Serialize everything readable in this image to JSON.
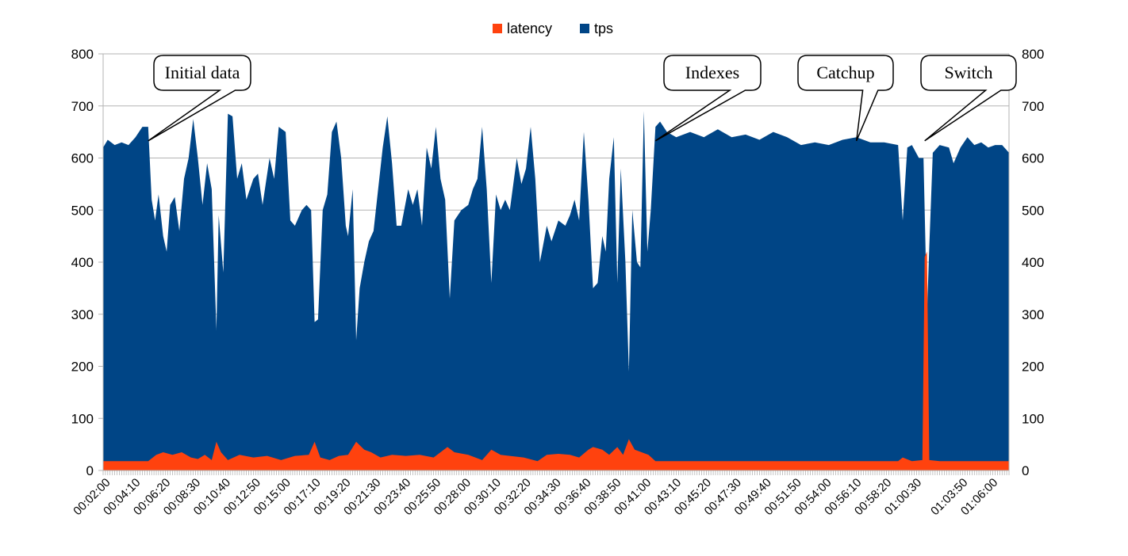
{
  "chart_data": {
    "type": "area",
    "title": "",
    "xlabel": "",
    "ylabel": "",
    "ylim": [
      0,
      800
    ],
    "y2lim": [
      0,
      800
    ],
    "yticks": [
      0,
      100,
      200,
      300,
      400,
      500,
      600,
      700,
      800
    ],
    "grid": true,
    "legend_position": "top",
    "x_range_seconds": [
      100,
      4020
    ],
    "x_tick_labels": [
      "00:02:00",
      "00:04:10",
      "00:06:20",
      "00:08:30",
      "00:10:40",
      "00:12:50",
      "00:15:00",
      "00:17:10",
      "00:19:20",
      "00:21:30",
      "00:23:40",
      "00:25:50",
      "00:28:00",
      "00:30:10",
      "00:32:20",
      "00:34:30",
      "00:36:40",
      "00:38:50",
      "00:41:00",
      "00:43:10",
      "00:45:20",
      "00:47:30",
      "00:49:40",
      "00:51:50",
      "00:54:00",
      "00:56:10",
      "00:58:20",
      "01:00:30",
      "01:03:50",
      "01:06:00"
    ],
    "series": [
      {
        "name": "tps",
        "color": "#004586",
        "points": [
          [
            "00:01:40",
            620
          ],
          [
            "00:02:00",
            635
          ],
          [
            "00:02:30",
            625
          ],
          [
            "00:03:00",
            630
          ],
          [
            "00:03:30",
            625
          ],
          [
            "00:04:00",
            640
          ],
          [
            "00:04:30",
            660
          ],
          [
            "00:04:55",
            660
          ],
          [
            "00:05:10",
            520
          ],
          [
            "00:05:25",
            480
          ],
          [
            "00:05:40",
            530
          ],
          [
            "00:06:00",
            450
          ],
          [
            "00:06:15",
            420
          ],
          [
            "00:06:30",
            510
          ],
          [
            "00:06:50",
            525
          ],
          [
            "00:07:10",
            460
          ],
          [
            "00:07:30",
            560
          ],
          [
            "00:07:50",
            600
          ],
          [
            "00:08:10",
            675
          ],
          [
            "00:08:30",
            600
          ],
          [
            "00:08:50",
            510
          ],
          [
            "00:09:10",
            590
          ],
          [
            "00:09:30",
            540
          ],
          [
            "00:09:50",
            270
          ],
          [
            "00:10:00",
            490
          ],
          [
            "00:10:20",
            380
          ],
          [
            "00:10:40",
            685
          ],
          [
            "00:11:00",
            680
          ],
          [
            "00:11:20",
            560
          ],
          [
            "00:11:40",
            590
          ],
          [
            "00:12:00",
            520
          ],
          [
            "00:12:30",
            560
          ],
          [
            "00:12:50",
            570
          ],
          [
            "00:13:10",
            510
          ],
          [
            "00:13:40",
            600
          ],
          [
            "00:14:00",
            560
          ],
          [
            "00:14:20",
            660
          ],
          [
            "00:14:50",
            650
          ],
          [
            "00:15:10",
            480
          ],
          [
            "00:15:30",
            470
          ],
          [
            "00:16:00",
            500
          ],
          [
            "00:16:20",
            510
          ],
          [
            "00:16:40",
            500
          ],
          [
            "00:16:55",
            285
          ],
          [
            "00:17:10",
            290
          ],
          [
            "00:17:30",
            500
          ],
          [
            "00:17:50",
            530
          ],
          [
            "00:18:10",
            650
          ],
          [
            "00:18:30",
            670
          ],
          [
            "00:18:50",
            600
          ],
          [
            "00:19:10",
            470
          ],
          [
            "00:19:20",
            450
          ],
          [
            "00:19:40",
            540
          ],
          [
            "00:19:55",
            250
          ],
          [
            "00:20:10",
            350
          ],
          [
            "00:20:30",
            400
          ],
          [
            "00:20:50",
            440
          ],
          [
            "00:21:10",
            460
          ],
          [
            "00:21:30",
            540
          ],
          [
            "00:21:50",
            620
          ],
          [
            "00:22:10",
            680
          ],
          [
            "00:22:30",
            590
          ],
          [
            "00:22:50",
            470
          ],
          [
            "00:23:10",
            470
          ],
          [
            "00:23:40",
            540
          ],
          [
            "00:24:00",
            510
          ],
          [
            "00:24:20",
            540
          ],
          [
            "00:24:40",
            470
          ],
          [
            "00:25:00",
            620
          ],
          [
            "00:25:20",
            580
          ],
          [
            "00:25:40",
            660
          ],
          [
            "00:26:00",
            560
          ],
          [
            "00:26:20",
            520
          ],
          [
            "00:26:40",
            330
          ],
          [
            "00:27:00",
            480
          ],
          [
            "00:27:30",
            500
          ],
          [
            "00:28:00",
            510
          ],
          [
            "00:28:20",
            540
          ],
          [
            "00:28:40",
            560
          ],
          [
            "00:29:00",
            660
          ],
          [
            "00:29:20",
            540
          ],
          [
            "00:29:40",
            360
          ],
          [
            "00:30:00",
            530
          ],
          [
            "00:30:20",
            500
          ],
          [
            "00:30:40",
            520
          ],
          [
            "00:31:00",
            500
          ],
          [
            "00:31:30",
            600
          ],
          [
            "00:31:50",
            550
          ],
          [
            "00:32:10",
            580
          ],
          [
            "00:32:30",
            660
          ],
          [
            "00:32:50",
            560
          ],
          [
            "00:33:10",
            400
          ],
          [
            "00:33:40",
            470
          ],
          [
            "00:34:00",
            440
          ],
          [
            "00:34:30",
            480
          ],
          [
            "00:35:00",
            470
          ],
          [
            "00:35:20",
            490
          ],
          [
            "00:35:40",
            520
          ],
          [
            "00:36:00",
            480
          ],
          [
            "00:36:20",
            650
          ],
          [
            "00:36:40",
            520
          ],
          [
            "00:37:00",
            350
          ],
          [
            "00:37:20",
            360
          ],
          [
            "00:37:40",
            450
          ],
          [
            "00:37:55",
            420
          ],
          [
            "00:38:10",
            560
          ],
          [
            "00:38:30",
            640
          ],
          [
            "00:38:45",
            360
          ],
          [
            "00:39:00",
            580
          ],
          [
            "00:39:20",
            400
          ],
          [
            "00:39:35",
            190
          ],
          [
            "00:39:50",
            500
          ],
          [
            "00:40:10",
            400
          ],
          [
            "00:40:25",
            390
          ],
          [
            "00:40:40",
            690
          ],
          [
            "00:40:55",
            420
          ],
          [
            "00:41:10",
            500
          ],
          [
            "00:41:30",
            660
          ],
          [
            "00:41:50",
            670
          ],
          [
            "00:42:20",
            650
          ],
          [
            "00:43:00",
            640
          ],
          [
            "00:44:00",
            650
          ],
          [
            "00:45:00",
            640
          ],
          [
            "00:46:00",
            655
          ],
          [
            "00:47:00",
            640
          ],
          [
            "00:48:00",
            645
          ],
          [
            "00:49:00",
            635
          ],
          [
            "00:50:00",
            650
          ],
          [
            "00:51:00",
            640
          ],
          [
            "00:52:00",
            625
          ],
          [
            "00:53:00",
            630
          ],
          [
            "00:54:00",
            625
          ],
          [
            "00:55:00",
            635
          ],
          [
            "00:56:00",
            640
          ],
          [
            "00:57:00",
            630
          ],
          [
            "00:58:00",
            630
          ],
          [
            "00:59:00",
            625
          ],
          [
            "00:59:20",
            480
          ],
          [
            "00:59:40",
            620
          ],
          [
            "01:00:00",
            625
          ],
          [
            "01:00:30",
            600
          ],
          [
            "01:00:50",
            600
          ],
          [
            "01:01:05",
            300
          ],
          [
            "01:01:15",
            430
          ],
          [
            "01:01:30",
            610
          ],
          [
            "01:02:00",
            625
          ],
          [
            "01:02:40",
            620
          ],
          [
            "01:03:00",
            590
          ],
          [
            "01:03:30",
            620
          ],
          [
            "01:04:00",
            640
          ],
          [
            "01:04:30",
            625
          ],
          [
            "01:05:00",
            630
          ],
          [
            "01:05:30",
            620
          ],
          [
            "01:06:00",
            625
          ],
          [
            "01:06:30",
            625
          ],
          [
            "01:07:00",
            610
          ]
        ]
      },
      {
        "name": "latency",
        "color": "#ff420e",
        "points": [
          [
            "00:01:40",
            18
          ],
          [
            "00:03:00",
            18
          ],
          [
            "00:04:55",
            18
          ],
          [
            "00:05:30",
            30
          ],
          [
            "00:06:00",
            35
          ],
          [
            "00:06:40",
            30
          ],
          [
            "00:07:20",
            35
          ],
          [
            "00:08:00",
            25
          ],
          [
            "00:08:30",
            22
          ],
          [
            "00:09:00",
            30
          ],
          [
            "00:09:30",
            20
          ],
          [
            "00:09:50",
            55
          ],
          [
            "00:10:10",
            35
          ],
          [
            "00:10:40",
            20
          ],
          [
            "00:11:30",
            30
          ],
          [
            "00:12:30",
            25
          ],
          [
            "00:13:30",
            28
          ],
          [
            "00:14:30",
            20
          ],
          [
            "00:15:30",
            28
          ],
          [
            "00:16:30",
            30
          ],
          [
            "00:16:55",
            55
          ],
          [
            "00:17:20",
            25
          ],
          [
            "00:18:00",
            20
          ],
          [
            "00:18:40",
            28
          ],
          [
            "00:19:20",
            30
          ],
          [
            "00:19:55",
            55
          ],
          [
            "00:20:30",
            40
          ],
          [
            "00:21:00",
            35
          ],
          [
            "00:21:40",
            25
          ],
          [
            "00:22:30",
            30
          ],
          [
            "00:23:30",
            28
          ],
          [
            "00:24:30",
            30
          ],
          [
            "00:25:30",
            25
          ],
          [
            "00:26:30",
            45
          ],
          [
            "00:27:00",
            35
          ],
          [
            "00:28:00",
            30
          ],
          [
            "00:29:00",
            20
          ],
          [
            "00:29:40",
            40
          ],
          [
            "00:30:20",
            30
          ],
          [
            "00:31:00",
            28
          ],
          [
            "00:32:00",
            25
          ],
          [
            "00:33:00",
            18
          ],
          [
            "00:33:40",
            30
          ],
          [
            "00:34:30",
            32
          ],
          [
            "00:35:20",
            30
          ],
          [
            "00:36:00",
            25
          ],
          [
            "00:36:40",
            40
          ],
          [
            "00:37:00",
            45
          ],
          [
            "00:37:40",
            40
          ],
          [
            "00:38:10",
            30
          ],
          [
            "00:38:45",
            45
          ],
          [
            "00:39:10",
            30
          ],
          [
            "00:39:35",
            60
          ],
          [
            "00:40:00",
            40
          ],
          [
            "00:40:30",
            35
          ],
          [
            "00:41:00",
            30
          ],
          [
            "00:41:30",
            18
          ],
          [
            "00:45:00",
            18
          ],
          [
            "00:50:00",
            18
          ],
          [
            "00:55:00",
            18
          ],
          [
            "00:59:00",
            18
          ],
          [
            "00:59:20",
            25
          ],
          [
            "01:00:00",
            18
          ],
          [
            "01:00:45",
            20
          ],
          [
            "01:00:55",
            410
          ],
          [
            "01:01:05",
            420
          ],
          [
            "01:01:15",
            20
          ],
          [
            "01:02:00",
            18
          ],
          [
            "01:04:00",
            18
          ],
          [
            "01:07:00",
            18
          ]
        ]
      }
    ],
    "annotations": [
      {
        "text": "Initial data",
        "at": "00:04:55",
        "y": 630
      },
      {
        "text": "Indexes",
        "at": "00:41:30",
        "y": 630
      },
      {
        "text": "Catchup",
        "at": "00:56:00",
        "y": 630
      },
      {
        "text": "Switch",
        "at": "01:00:55",
        "y": 630
      }
    ]
  }
}
